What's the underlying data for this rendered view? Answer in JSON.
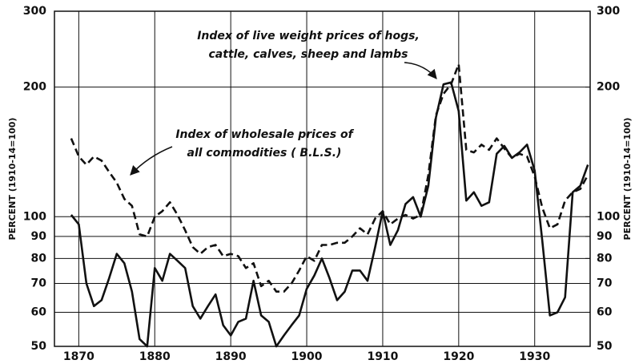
{
  "chart_data": {
    "type": "line",
    "y_label": "PERCENT (1910-14=100)",
    "y2_label": "PERCENT (1910-14=100)",
    "annotations": [
      {
        "lines": [
          "Index of live weight prices of hogs,",
          "cattle, calves, sheep and lambs"
        ]
      },
      {
        "lines": [
          "Index of wholesale prices of",
          "all commodities ( B.L.S.)"
        ]
      }
    ],
    "x": [
      1869,
      1870,
      1871,
      1872,
      1873,
      1874,
      1875,
      1876,
      1877,
      1878,
      1879,
      1880,
      1881,
      1882,
      1883,
      1884,
      1885,
      1886,
      1887,
      1888,
      1889,
      1890,
      1891,
      1892,
      1893,
      1894,
      1895,
      1896,
      1897,
      1898,
      1899,
      1900,
      1901,
      1902,
      1903,
      1904,
      1905,
      1906,
      1907,
      1908,
      1909,
      1910,
      1911,
      1912,
      1913,
      1914,
      1915,
      1916,
      1917,
      1918,
      1919,
      1920,
      1921,
      1922,
      1923,
      1924,
      1925,
      1926,
      1927,
      1928,
      1929,
      1930,
      1931,
      1932,
      1933,
      1934,
      1935,
      1936,
      1937
    ],
    "series": [
      {
        "color": "#111111",
        "dash": false,
        "values": [
          101,
          96,
          70,
          62,
          64,
          72,
          82,
          78,
          67,
          52,
          50,
          76,
          71,
          82,
          79,
          76,
          62,
          58,
          62,
          66,
          56,
          53,
          57,
          58,
          71,
          59,
          57,
          50,
          53,
          56,
          59,
          68,
          73,
          80,
          72,
          64,
          67,
          75,
          75,
          71,
          85,
          103,
          86,
          93,
          107,
          111,
          100,
          118,
          170,
          203,
          205,
          176,
          109,
          114,
          106,
          108,
          140,
          146,
          137,
          141,
          147,
          128,
          88,
          59,
          60,
          65,
          114,
          118,
          132
        ]
      },
      {
        "color": "#111111",
        "dash": true,
        "values": [
          152,
          138,
          132,
          138,
          135,
          127,
          120,
          110,
          106,
          91,
          90,
          100,
          103,
          108,
          101,
          93,
          85,
          82,
          85,
          86,
          81,
          82,
          81,
          76,
          78,
          69,
          71,
          67,
          67,
          70,
          75,
          81,
          79,
          86,
          86,
          87,
          87,
          90,
          94,
          91,
          99,
          103,
          96,
          99,
          101,
          99,
          101,
          125,
          172,
          193,
          203,
          226,
          143,
          141,
          147,
          143,
          152,
          144,
          137,
          140,
          138,
          124,
          105,
          94,
          96,
          109,
          114,
          116,
          125
        ]
      }
    ],
    "xlim": [
      1866.8,
      1937.3
    ],
    "xticks": [
      1870,
      1880,
      1890,
      1900,
      1910,
      1920,
      1930
    ],
    "ylim": [
      50,
      300
    ],
    "yticks": [
      50,
      60,
      70,
      80,
      90,
      100,
      200,
      300
    ],
    "y2lim": [
      50,
      300
    ],
    "y2ticks": [
      50,
      60,
      70,
      80,
      90,
      100,
      200,
      300
    ],
    "log_y": true,
    "grid": true
  }
}
